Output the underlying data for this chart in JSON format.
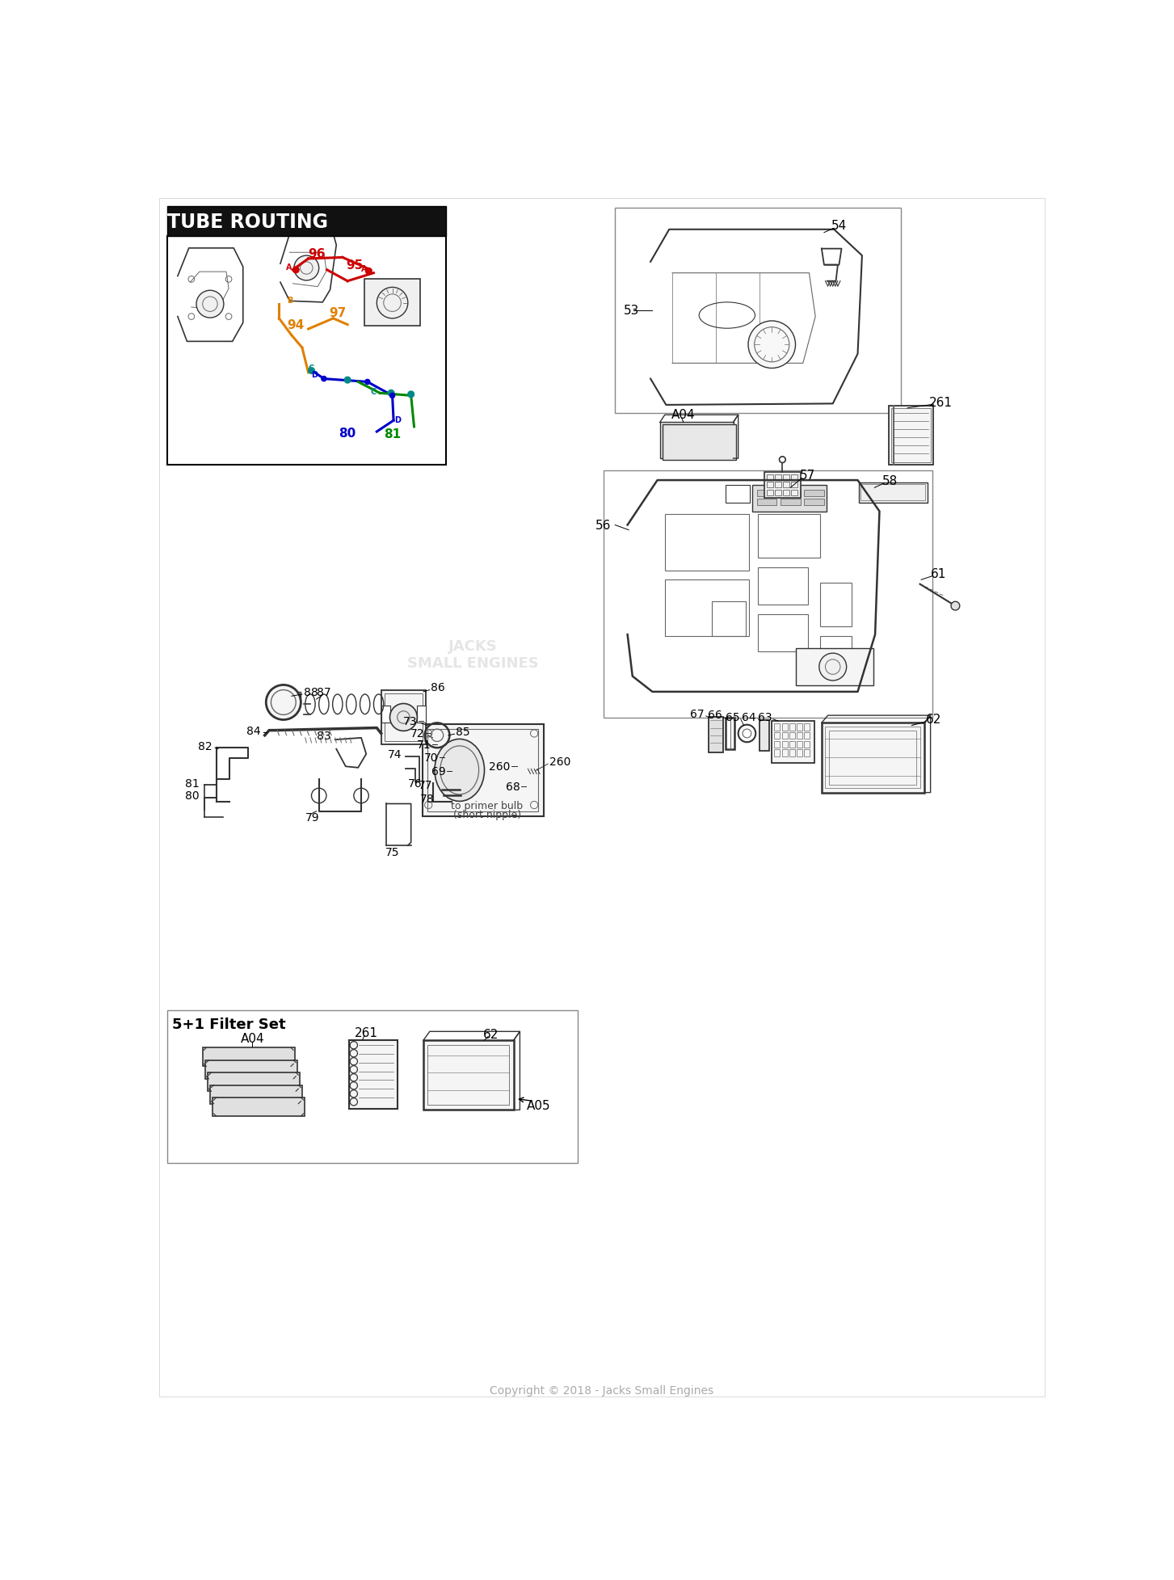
{
  "bg_color": "#ffffff",
  "tube_routing_label": "TUBE ROUTING",
  "tube_routing_bg": "#1a1a1a",
  "copyright": "Copyright © 2018 - Jacks Small Engines",
  "copyright_color": "#aaaaaa",
  "red": "#cc0000",
  "orange": "#e08000",
  "blue": "#0000cc",
  "green": "#008800",
  "teal": "#008888",
  "dk": "#333333",
  "md": "#666666",
  "lt": "#aaaaaa",
  "filter_label": "5+1 Filter Set"
}
